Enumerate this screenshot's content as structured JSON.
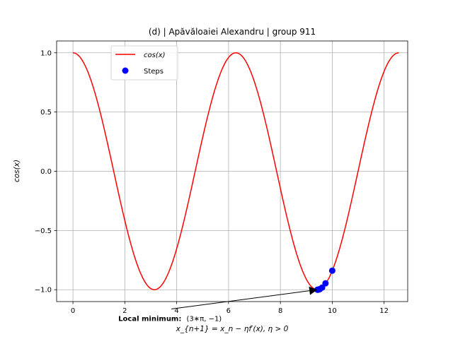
{
  "chart_data": {
    "type": "line",
    "title": "(d) | Apăvăloaiei Alexandru | group 911",
    "xlabel": "x_{n+1} = x_n − ηf′(x), η > 0",
    "ylabel": "cos(x)",
    "xlim": [
      -0.63,
      12.91
    ],
    "ylim": [
      -1.1,
      1.1
    ],
    "x_ticks": [
      0,
      2,
      4,
      6,
      8,
      10,
      12
    ],
    "y_ticks": [
      -1.0,
      -0.5,
      0.0,
      0.5,
      1.0
    ],
    "x_tick_labels": [
      "0",
      "2",
      "4",
      "6",
      "8",
      "10",
      "12"
    ],
    "y_tick_labels": [
      "−1.0",
      "−0.5",
      "0.0",
      "0.5",
      "1.0"
    ],
    "grid": true,
    "legend_placement": "upper-left",
    "series": [
      {
        "name": "cos(x)",
        "kind": "line",
        "function": "cos",
        "x_range": [
          0,
          12.566
        ],
        "color": "#ff0000"
      },
      {
        "name": "Steps",
        "kind": "scatter",
        "color": "#0000ff",
        "x": [
          10.0,
          9.74,
          9.61,
          9.52,
          9.47,
          9.44,
          9.43
        ],
        "y": [
          -0.839,
          -0.946,
          -0.982,
          -0.995,
          -0.999,
          -1.0,
          -1.0
        ]
      }
    ],
    "annotation": {
      "label_bold": "Local minimum:",
      "label_value": "(3∗π, −1)",
      "point": [
        9.42,
        -1.0
      ],
      "text_pos": [
        1.75,
        -1.24
      ]
    }
  }
}
